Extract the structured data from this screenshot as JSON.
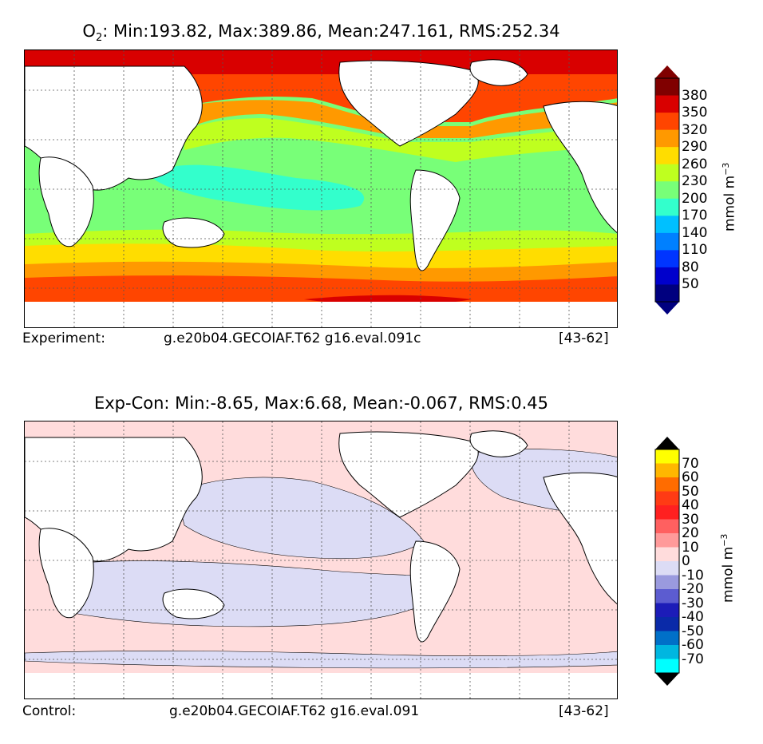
{
  "panel_top": {
    "title_var": "O",
    "title_sub": "2",
    "title_stats": ": Min:193.82, Max:389.86, Mean:247.161, RMS:252.34",
    "footer_left": "Experiment:",
    "footer_case": "g.e20b04.GECOIAF.T62 g16.eval.091c",
    "footer_years": "[43-62]",
    "colorbar": {
      "units": "mmol m",
      "units_exp": "−3",
      "ticks": [
        "380",
        "350",
        "320",
        "290",
        "260",
        "230",
        "200",
        "170",
        "140",
        "110",
        "80",
        "50"
      ],
      "colors": [
        "#800000",
        "#d90000",
        "#ff4500",
        "#ff9900",
        "#ffdd00",
        "#bfff1f",
        "#78ff78",
        "#33ffcc",
        "#00c0ff",
        "#0080ff",
        "#0035ff",
        "#0000cc",
        "#00007f"
      ],
      "over_color": "#800000",
      "under_color": "#00007f"
    }
  },
  "panel_bottom": {
    "title": "Exp-Con: Min:-8.65, Max:6.68, Mean:-0.067, RMS:0.45",
    "footer_left": "Control:",
    "footer_case": "g.e20b04.GECOIAF.T62 g16.eval.091",
    "footer_years": "[43-62]",
    "colorbar": {
      "units": "mmol m",
      "units_exp": "−3",
      "ticks": [
        "70",
        "60",
        "50",
        "40",
        "30",
        "20",
        "10",
        "0",
        "-10",
        "-20",
        "-30",
        "-40",
        "-50",
        "-60",
        "-70"
      ],
      "colors": [
        "#ffff00",
        "#ffb700",
        "#ff6c00",
        "#ff3b14",
        "#ff2020",
        "#ff6060",
        "#ff9a9a",
        "#ffdcdc",
        "#dcdcf5",
        "#9a9ade",
        "#5c5cd0",
        "#1c1cb8",
        "#0a2aa8",
        "#0070c8",
        "#00b6e0",
        "#00ffff"
      ],
      "over_color": "#000000",
      "under_color": "#000000"
    }
  }
}
